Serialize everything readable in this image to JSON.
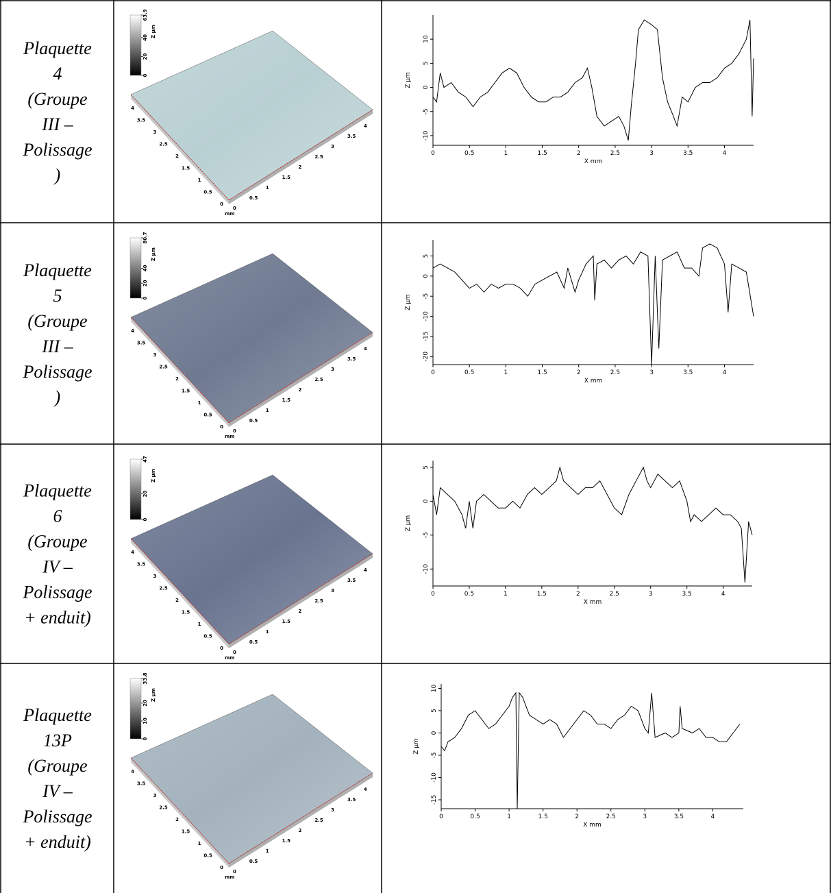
{
  "rows": [
    {
      "label": [
        "Plaquette",
        "4",
        "(Groupe",
        "III –",
        "Polissage",
        ")"
      ],
      "surface": {
        "zlim": [
          0,
          63.9
        ],
        "zticks": [
          0,
          20,
          40,
          63.9
        ],
        "zlabel": "Z µm",
        "ticks": [
          0,
          0.5,
          1,
          1.5,
          2,
          2.5,
          3,
          3.5,
          4
        ],
        "unit": "mm",
        "color": "#b9d0d3"
      },
      "profile": {
        "type": "line",
        "xlabel": "X mm",
        "ylabel": "Z µm",
        "xlim": [
          0,
          4.4
        ],
        "ylim": [
          -12,
          15
        ],
        "xticks": [
          0,
          0.5,
          1,
          1.5,
          2,
          2.5,
          3,
          3.5,
          4
        ],
        "yticks": [
          -10,
          -5,
          0,
          5,
          10
        ],
        "x": [
          0,
          0.05,
          0.1,
          0.15,
          0.25,
          0.35,
          0.45,
          0.55,
          0.65,
          0.75,
          0.85,
          0.95,
          1.05,
          1.15,
          1.25,
          1.35,
          1.45,
          1.55,
          1.65,
          1.75,
          1.85,
          1.95,
          2.05,
          2.12,
          2.18,
          2.25,
          2.35,
          2.45,
          2.55,
          2.62,
          2.68,
          2.72,
          2.78,
          2.82,
          2.9,
          3.0,
          3.08,
          3.15,
          3.22,
          3.3,
          3.35,
          3.42,
          3.5,
          3.6,
          3.7,
          3.8,
          3.9,
          4.0,
          4.1,
          4.2,
          4.3,
          4.35,
          4.38,
          4.4
        ],
        "values": [
          -2,
          -3,
          3,
          0,
          1,
          -1,
          -2,
          -4,
          -2,
          -1,
          1,
          3,
          4,
          3,
          0,
          -2,
          -3,
          -3,
          -2,
          -2,
          -1,
          1,
          2,
          4,
          0,
          -6,
          -8,
          -7,
          -6,
          -8,
          -11,
          -4,
          5,
          12,
          14,
          13,
          12,
          2,
          -3,
          -6,
          -8,
          -2,
          -3,
          0,
          1,
          1,
          2,
          4,
          5,
          7,
          10,
          14,
          -6,
          6
        ]
      }
    },
    {
      "label": [
        "Plaquette",
        "5",
        "(Groupe",
        "III –",
        "Polissage",
        ")"
      ],
      "surface": {
        "zlim": [
          0,
          80.7
        ],
        "zticks": [
          0,
          20,
          40,
          80.7
        ],
        "zlabel": "Z µm",
        "ticks": [
          0,
          0.5,
          1,
          1.5,
          2,
          2.5,
          3,
          3.5,
          4
        ],
        "unit": "mm",
        "color": "#6f7a91"
      },
      "profile": {
        "type": "line",
        "xlabel": "X mm",
        "ylabel": "Z µm",
        "xlim": [
          0,
          4.4
        ],
        "ylim": [
          -22,
          9
        ],
        "xticks": [
          0,
          0.5,
          1,
          1.5,
          2,
          2.5,
          3,
          3.5,
          4
        ],
        "yticks": [
          -20,
          -15,
          -10,
          -5,
          0,
          5
        ],
        "x": [
          0,
          0.1,
          0.2,
          0.3,
          0.4,
          0.5,
          0.6,
          0.7,
          0.8,
          0.9,
          1.0,
          1.1,
          1.2,
          1.3,
          1.4,
          1.5,
          1.6,
          1.7,
          1.8,
          1.85,
          1.95,
          2.0,
          2.1,
          2.2,
          2.22,
          2.25,
          2.35,
          2.45,
          2.55,
          2.65,
          2.75,
          2.85,
          2.95,
          3.0,
          3.05,
          3.1,
          3.15,
          3.25,
          3.35,
          3.45,
          3.55,
          3.65,
          3.7,
          3.8,
          3.9,
          4.0,
          4.05,
          4.1,
          4.2,
          4.3,
          4.4
        ],
        "values": [
          2,
          3,
          2,
          1,
          -1,
          -3,
          -2,
          -4,
          -2,
          -3,
          -2,
          -2,
          -3,
          -5,
          -2,
          -1,
          0,
          1,
          -3,
          2,
          -4,
          -1,
          3,
          5,
          -6,
          3,
          4,
          2,
          4,
          5,
          3,
          6,
          5,
          -22,
          5,
          -18,
          4,
          5,
          6,
          2,
          2,
          0,
          7,
          8,
          7,
          3,
          -9,
          3,
          2,
          1,
          -10
        ]
      }
    },
    {
      "label": [
        "Plaquette",
        "6",
        "(Groupe",
        "IV –",
        "Polissage",
        "+ enduit)"
      ],
      "surface": {
        "zlim": [
          0,
          47
        ],
        "zticks": [
          0,
          20,
          47
        ],
        "zlabel": "Z µm",
        "ticks": [
          0,
          0.5,
          1,
          1.5,
          2,
          2.5,
          3,
          3.5,
          4
        ],
        "unit": "mm",
        "color": "#69748f"
      },
      "profile": {
        "type": "line",
        "xlabel": "X mm",
        "ylabel": "Z µm",
        "xlim": [
          0,
          4.4
        ],
        "ylim": [
          -12.5,
          6
        ],
        "xticks": [
          0,
          0.5,
          1,
          1.5,
          2,
          2.5,
          3,
          3.5,
          4
        ],
        "yticks": [
          -10,
          -5,
          0,
          5
        ],
        "x": [
          0,
          0.05,
          0.1,
          0.2,
          0.3,
          0.4,
          0.45,
          0.5,
          0.55,
          0.6,
          0.7,
          0.8,
          0.9,
          1.0,
          1.1,
          1.2,
          1.3,
          1.4,
          1.5,
          1.6,
          1.7,
          1.75,
          1.8,
          1.9,
          2.0,
          2.1,
          2.2,
          2.3,
          2.4,
          2.5,
          2.6,
          2.7,
          2.8,
          2.9,
          2.95,
          3.0,
          3.1,
          3.2,
          3.3,
          3.4,
          3.5,
          3.55,
          3.6,
          3.7,
          3.8,
          3.9,
          4.0,
          4.1,
          4.2,
          4.25,
          4.3,
          4.35,
          4.4
        ],
        "values": [
          1,
          -2,
          2,
          1,
          0,
          -2,
          -4,
          0,
          -4,
          0,
          1,
          0,
          -1,
          -1,
          0,
          -1,
          1,
          2,
          1,
          2,
          3,
          5,
          3,
          2,
          1,
          2,
          2,
          3,
          1,
          -1,
          -2,
          1,
          3,
          5,
          3,
          2,
          4,
          3,
          2,
          3,
          0,
          -3,
          -2,
          -3,
          -2,
          -1,
          -2,
          -2,
          -3,
          -4,
          -12,
          -3,
          -5
        ]
      }
    },
    {
      "label": [
        "Plaquette",
        "13P",
        "(Groupe",
        "IV –",
        "Polissage",
        "+ enduit)"
      ],
      "surface": {
        "zlim": [
          0,
          33.8
        ],
        "zticks": [
          0,
          10,
          20,
          33.8
        ],
        "zlabel": "Z µm",
        "ticks": [
          0,
          0.5,
          1,
          1.5,
          2,
          2.5,
          3,
          3.5,
          4
        ],
        "unit": "mm",
        "color": "#a3b2bd"
      },
      "profile": {
        "type": "line",
        "xlabel": "X mm",
        "ylabel": "Z µm",
        "xlim": [
          0,
          4.45
        ],
        "ylim": [
          -17,
          11
        ],
        "xticks": [
          0,
          0.5,
          1,
          1.5,
          2,
          2.5,
          3,
          3.5,
          4
        ],
        "yticks": [
          -15,
          -10,
          -5,
          0,
          5,
          10
        ],
        "x": [
          0,
          0.05,
          0.1,
          0.2,
          0.3,
          0.4,
          0.5,
          0.6,
          0.7,
          0.8,
          0.9,
          1.0,
          1.05,
          1.1,
          1.12,
          1.15,
          1.2,
          1.3,
          1.4,
          1.5,
          1.6,
          1.7,
          1.8,
          1.9,
          2.0,
          2.1,
          2.2,
          2.3,
          2.4,
          2.5,
          2.6,
          2.7,
          2.8,
          2.9,
          3.0,
          3.05,
          3.1,
          3.15,
          3.3,
          3.4,
          3.5,
          3.52,
          3.55,
          3.7,
          3.8,
          3.9,
          4.0,
          4.1,
          4.2,
          4.3,
          4.4
        ],
        "values": [
          -3,
          -4,
          -2,
          -1,
          1,
          4,
          5,
          3,
          1,
          2,
          4,
          6,
          8,
          9,
          -17,
          9,
          8,
          4,
          3,
          2,
          3,
          2,
          -1,
          1,
          3,
          5,
          4,
          2,
          2,
          1,
          3,
          4,
          6,
          5,
          1,
          0,
          9,
          -1,
          0,
          -1,
          0,
          6,
          1,
          0,
          1,
          -1,
          -1,
          -2,
          -2,
          0,
          2
        ]
      }
    }
  ]
}
